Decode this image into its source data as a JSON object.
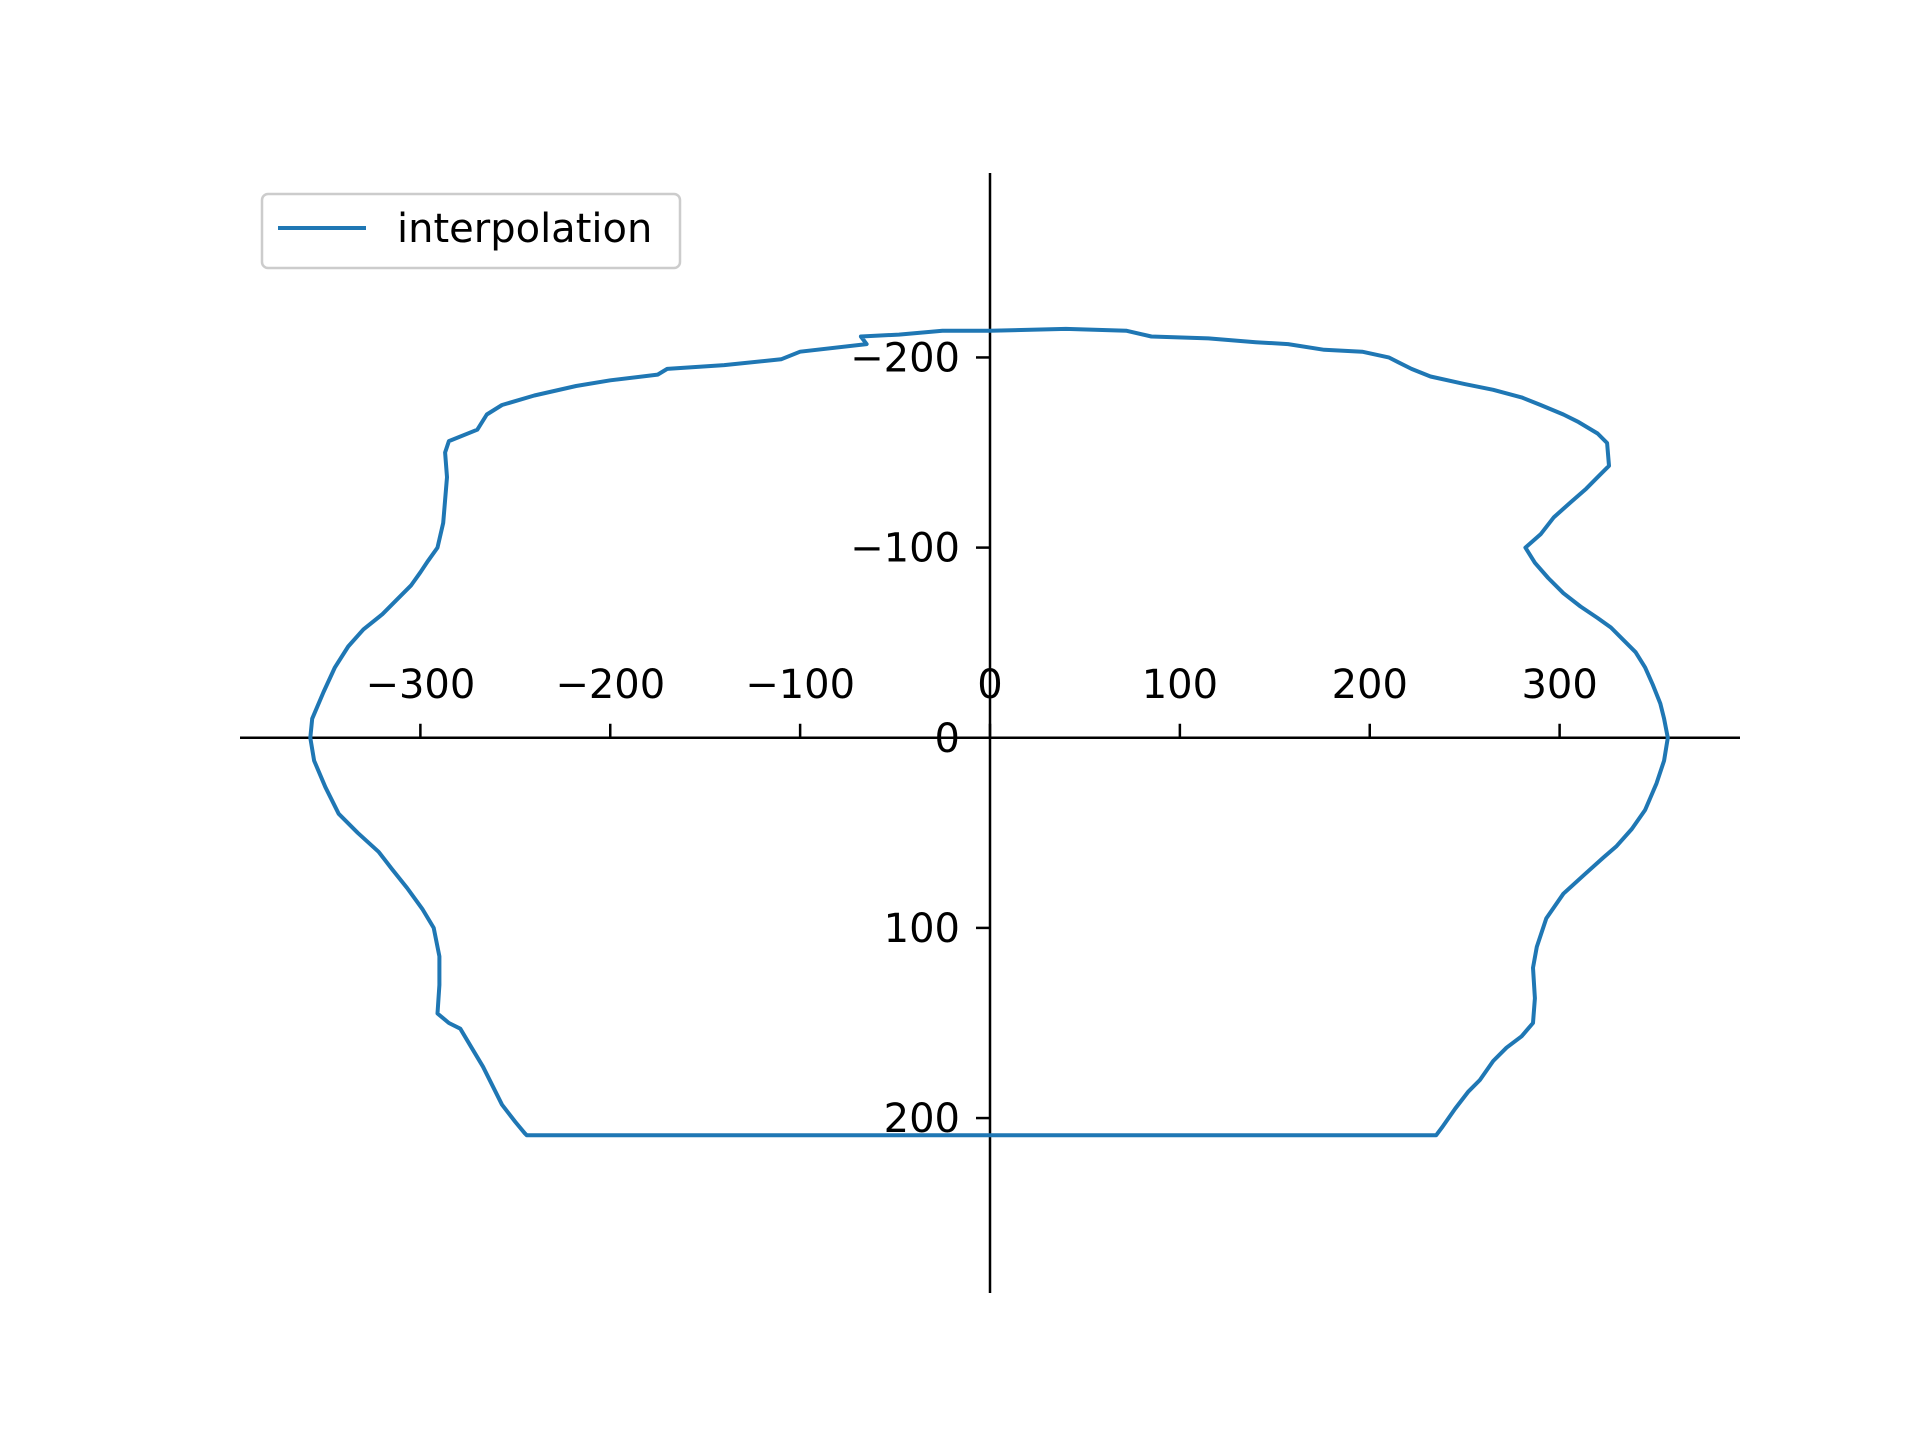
{
  "chart_data": {
    "type": "line",
    "title": "",
    "xlabel": "",
    "ylabel": "",
    "xlim": [
      -395,
      395
    ],
    "ylim": [
      -297,
      292
    ],
    "y_inverted": true,
    "grid": false,
    "spines": "centered at origin",
    "legend": {
      "placement": "top-left",
      "entries": [
        "interpolation"
      ]
    },
    "x_ticks": [
      {
        "value": -300,
        "label": "−300"
      },
      {
        "value": -200,
        "label": "−200"
      },
      {
        "value": -100,
        "label": "−100"
      },
      {
        "value": 0,
        "label": "0"
      },
      {
        "value": 100,
        "label": "100"
      },
      {
        "value": 200,
        "label": "200"
      },
      {
        "value": 300,
        "label": "300"
      }
    ],
    "y_ticks": [
      {
        "value": -200,
        "label": "−200"
      },
      {
        "value": -100,
        "label": "−100"
      },
      {
        "value": 0,
        "label": "0"
      },
      {
        "value": 100,
        "label": "100"
      },
      {
        "value": 200,
        "label": "200"
      }
    ],
    "series": [
      {
        "name": "interpolation",
        "color": "#1f77b4",
        "points": [
          [
            357,
            0
          ],
          [
            355,
            -10
          ],
          [
            353,
            -18
          ],
          [
            349,
            -28
          ],
          [
            345,
            -37
          ],
          [
            340,
            -45
          ],
          [
            334,
            -51
          ],
          [
            327,
            -58
          ],
          [
            320,
            -63
          ],
          [
            311,
            -69
          ],
          [
            302,
            -76
          ],
          [
            294,
            -84
          ],
          [
            287,
            -92
          ],
          [
            282,
            -100
          ],
          [
            290,
            -107
          ],
          [
            297,
            -116
          ],
          [
            306,
            -124
          ],
          [
            314,
            -131
          ],
          [
            320,
            -137
          ],
          [
            326,
            -143
          ],
          [
            325,
            -155
          ],
          [
            320,
            -160
          ],
          [
            310,
            -166
          ],
          [
            302,
            -170
          ],
          [
            290,
            -175
          ],
          [
            280,
            -179
          ],
          [
            265,
            -183
          ],
          [
            250,
            -186
          ],
          [
            232,
            -190
          ],
          [
            222,
            -194
          ],
          [
            210,
            -200
          ],
          [
            196,
            -203
          ],
          [
            176,
            -204
          ],
          [
            157,
            -207
          ],
          [
            140,
            -208
          ],
          [
            115,
            -210
          ],
          [
            85,
            -211
          ],
          [
            72,
            -214
          ],
          [
            40,
            -215
          ],
          [
            0,
            -214
          ],
          [
            -25,
            -214
          ],
          [
            -48,
            -212
          ],
          [
            -68,
            -211
          ],
          [
            -65,
            -207
          ],
          [
            -100,
            -203
          ],
          [
            -110,
            -199
          ],
          [
            -140,
            -196
          ],
          [
            -170,
            -194
          ],
          [
            -175,
            -191
          ],
          [
            -200,
            -188
          ],
          [
            -218,
            -185
          ],
          [
            -240,
            -180
          ],
          [
            -257,
            -175
          ],
          [
            -265,
            -170
          ],
          [
            -270,
            -162
          ],
          [
            -285,
            -156
          ],
          [
            -287,
            -150
          ],
          [
            -286,
            -137
          ],
          [
            -287,
            -125
          ],
          [
            -288,
            -113
          ],
          [
            -291,
            -100
          ],
          [
            -296,
            -93
          ],
          [
            -300,
            -87
          ],
          [
            -305,
            -80
          ],
          [
            -313,
            -72
          ],
          [
            -320,
            -65
          ],
          [
            -330,
            -57
          ],
          [
            -338,
            -48
          ],
          [
            -345,
            -37
          ],
          [
            -351,
            -24
          ],
          [
            -357,
            -10
          ],
          [
            -358,
            0
          ],
          [
            -356,
            12
          ],
          [
            -350,
            26
          ],
          [
            -343,
            40
          ],
          [
            -333,
            50
          ],
          [
            -322,
            60
          ],
          [
            -315,
            69
          ],
          [
            -307,
            79
          ],
          [
            -299,
            90
          ],
          [
            -293,
            100
          ],
          [
            -290,
            115
          ],
          [
            -290,
            130
          ],
          [
            -291,
            145
          ],
          [
            -285,
            150
          ],
          [
            -279,
            153
          ],
          [
            -273,
            163
          ],
          [
            -267,
            173
          ],
          [
            -262,
            183
          ],
          [
            -257,
            193
          ],
          [
            -250,
            202
          ],
          [
            -245,
            208
          ],
          [
            -244,
            209
          ],
          [
            -200,
            209
          ],
          [
            -100,
            209
          ],
          [
            0,
            209
          ],
          [
            100,
            209
          ],
          [
            200,
            209
          ],
          [
            235,
            209
          ],
          [
            238,
            205
          ],
          [
            245,
            195
          ],
          [
            252,
            186
          ],
          [
            258,
            180
          ],
          [
            265,
            170
          ],
          [
            272,
            163
          ],
          [
            280,
            157
          ],
          [
            286,
            150
          ],
          [
            287,
            137
          ],
          [
            286,
            121
          ],
          [
            288,
            110
          ],
          [
            293,
            95
          ],
          [
            302,
            82
          ],
          [
            313,
            72
          ],
          [
            323,
            63
          ],
          [
            330,
            57
          ],
          [
            338,
            48
          ],
          [
            345,
            38
          ],
          [
            351,
            24
          ],
          [
            355,
            12
          ],
          [
            357,
            0
          ]
        ]
      }
    ]
  }
}
